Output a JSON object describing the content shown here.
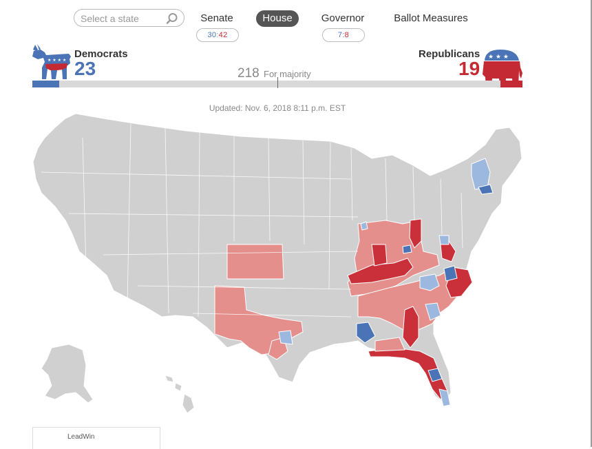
{
  "search": {
    "placeholder": "Select a state"
  },
  "tabs": [
    {
      "label": "Senate",
      "active": false
    },
    {
      "label": "House",
      "active": true
    },
    {
      "label": "Governor",
      "active": false
    },
    {
      "label": "Ballot Measures",
      "active": false
    }
  ],
  "senate_counts": {
    "dem": "30",
    "rep": "42"
  },
  "governor_counts": {
    "dem": "7",
    "rep": "8"
  },
  "democrats": {
    "name": "Democrats",
    "count": "23",
    "color": "#4a74b6"
  },
  "republicans": {
    "name": "Republicans",
    "count": "19",
    "color": "#c32a33"
  },
  "majority": {
    "number": "218",
    "label": "For majority"
  },
  "updated": "Updated: Nov. 6, 2018 8:11 p.m. EST",
  "legend": {
    "lead": "Lead",
    "win": "Win"
  },
  "colors": {
    "no_result": "#d0d0d0",
    "dem_lead": "#9cb8df",
    "dem_win": "#4a74b6",
    "rep_lead": "#e48f8c",
    "rep_win": "#c9303a"
  }
}
